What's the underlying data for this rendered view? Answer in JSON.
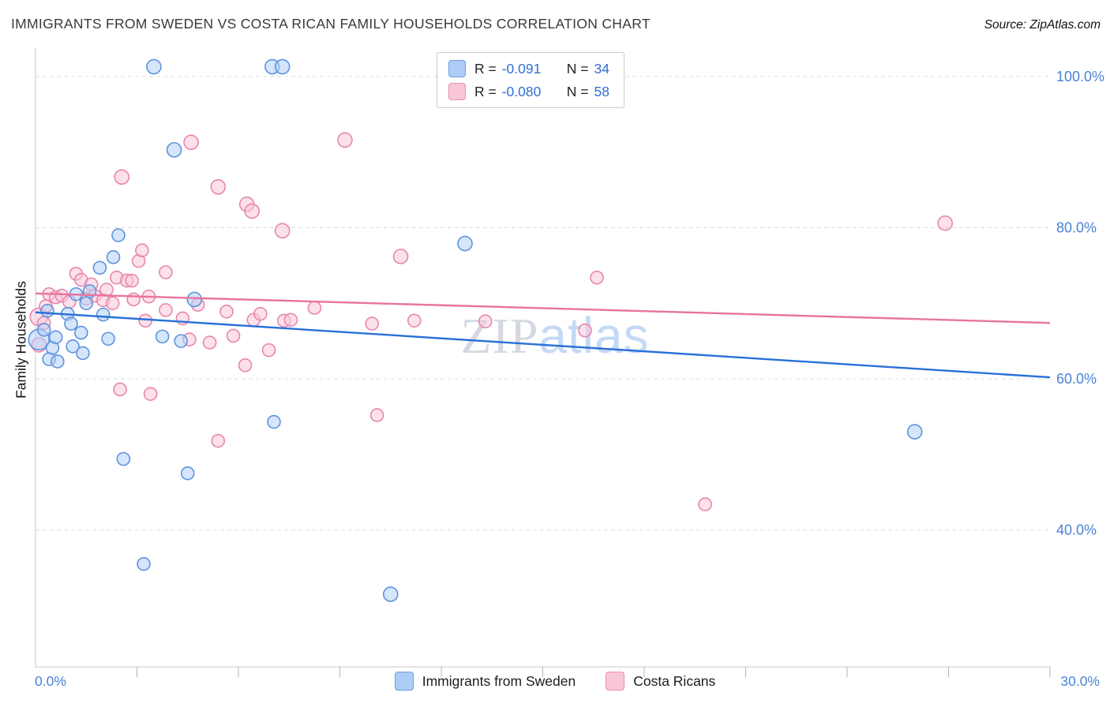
{
  "header": {
    "title": "IMMIGRANTS FROM SWEDEN VS COSTA RICAN FAMILY HOUSEHOLDS CORRELATION CHART",
    "source": "Source: ZipAtlas.com"
  },
  "watermark": {
    "zip": "ZIP",
    "atlas": "atlas"
  },
  "axes": {
    "y_title": "Family Households",
    "x_min_label": "0.0%",
    "x_max_label": "30.0%"
  },
  "legend_box": {
    "rows": [
      {
        "series": "sweden",
        "r_label": "R =",
        "r_value": "-0.091",
        "n_label": "N =",
        "n_value": "34"
      },
      {
        "series": "costa_ricans",
        "r_label": "R =",
        "r_value": "-0.080",
        "n_label": "N =",
        "n_value": "58"
      }
    ]
  },
  "bottom_legend": [
    {
      "label": "Immigrants from Sweden",
      "color": "#aecdf6"
    },
    {
      "label": "Costa Ricans",
      "color": "#f9c6d9"
    }
  ],
  "theme": {
    "axis_label_color": "#4a82d9",
    "grid_color": "#dcdcdc",
    "axis_color": "#c9c9c9",
    "tick_color": "#b5b5b5",
    "title_color": "#3a3a3a"
  },
  "chart_data": {
    "type": "scatter",
    "title": "IMMIGRANTS FROM SWEDEN VS COSTA RICAN FAMILY HOUSEHOLDS CORRELATION CHART",
    "xlabel": "Immigrants from Sweden (%)",
    "ylabel": "Family Households (%)",
    "xlim": [
      0,
      30
    ],
    "ylim": [
      22,
      104
    ],
    "x_tick_step": 3,
    "y_ticks": [
      {
        "value": 100,
        "label": "100.0%"
      },
      {
        "value": 80,
        "label": "80.0%"
      },
      {
        "value": 60,
        "label": "60.0%"
      },
      {
        "value": 40,
        "label": "40.0%"
      }
    ],
    "grid": true,
    "legend_position": "bottom",
    "series": [
      {
        "id": "sweden",
        "name": "Immigrants from Sweden",
        "r": -0.091,
        "n": 34,
        "fill": "#b3d0f7",
        "stroke": "#5f93dd",
        "line_color": "#2970d8",
        "trend": [
          [
            0,
            68.8
          ],
          [
            30,
            60.2
          ]
        ],
        "points": [
          [
            0.1,
            65.2,
            13
          ],
          [
            0.25,
            66.5
          ],
          [
            0.35,
            69.0
          ],
          [
            0.4,
            62.6
          ],
          [
            0.5,
            64.1
          ],
          [
            0.6,
            65.5
          ],
          [
            0.65,
            62.3
          ],
          [
            0.95,
            68.6
          ],
          [
            1.05,
            67.3
          ],
          [
            1.1,
            64.3
          ],
          [
            1.2,
            71.2
          ],
          [
            1.35,
            66.1
          ],
          [
            1.4,
            63.4
          ],
          [
            1.5,
            70.0
          ],
          [
            1.6,
            71.6
          ],
          [
            1.9,
            74.7
          ],
          [
            2.0,
            68.5
          ],
          [
            2.15,
            65.3
          ],
          [
            2.3,
            76.1
          ],
          [
            2.45,
            79.0
          ],
          [
            2.6,
            49.4
          ],
          [
            3.2,
            35.5
          ],
          [
            3.5,
            101.3,
            9
          ],
          [
            3.75,
            65.6
          ],
          [
            4.1,
            90.3,
            9
          ],
          [
            4.3,
            65.0
          ],
          [
            4.5,
            47.5
          ],
          [
            4.7,
            70.5,
            9
          ],
          [
            7.0,
            101.3,
            9
          ],
          [
            7.05,
            54.3
          ],
          [
            7.3,
            101.3,
            9
          ],
          [
            10.5,
            31.5,
            9
          ],
          [
            12.7,
            77.9,
            9
          ],
          [
            26.0,
            53.0,
            9
          ]
        ]
      },
      {
        "id": "costa_ricans",
        "name": "Costa Ricans",
        "r": -0.08,
        "n": 58,
        "fill": "#f9c8da",
        "stroke": "#e886ab",
        "line_color": "#e8739e",
        "trend": [
          [
            0,
            71.3
          ],
          [
            30,
            67.4
          ]
        ],
        "points": [
          [
            0.1,
            68.2,
            11
          ],
          [
            0.1,
            64.5,
            9
          ],
          [
            0.25,
            67.4
          ],
          [
            0.3,
            69.6
          ],
          [
            0.4,
            71.2
          ],
          [
            0.6,
            70.8
          ],
          [
            0.78,
            71.0
          ],
          [
            1.0,
            70.2
          ],
          [
            1.2,
            73.9
          ],
          [
            1.35,
            73.1
          ],
          [
            1.5,
            70.6
          ],
          [
            1.65,
            72.5
          ],
          [
            1.75,
            71.0
          ],
          [
            2.0,
            70.4
          ],
          [
            2.1,
            71.8
          ],
          [
            2.28,
            70.0
          ],
          [
            2.4,
            73.4
          ],
          [
            2.5,
            58.6
          ],
          [
            2.55,
            86.7,
            9
          ],
          [
            2.7,
            73.0
          ],
          [
            2.85,
            73.0
          ],
          [
            2.9,
            70.5
          ],
          [
            3.05,
            75.6
          ],
          [
            3.15,
            77.0
          ],
          [
            3.25,
            67.7
          ],
          [
            3.35,
            70.9
          ],
          [
            3.4,
            58.0
          ],
          [
            3.85,
            74.1
          ],
          [
            3.85,
            69.1
          ],
          [
            4.35,
            68.0
          ],
          [
            4.55,
            65.2
          ],
          [
            4.6,
            91.3,
            9
          ],
          [
            4.8,
            69.8
          ],
          [
            5.15,
            64.8
          ],
          [
            5.4,
            85.4,
            9
          ],
          [
            5.4,
            51.8
          ],
          [
            5.65,
            68.9
          ],
          [
            5.85,
            65.7
          ],
          [
            6.2,
            61.8
          ],
          [
            6.25,
            83.1,
            9
          ],
          [
            6.4,
            82.2,
            9
          ],
          [
            6.45,
            67.8
          ],
          [
            6.65,
            68.6
          ],
          [
            6.9,
            63.8
          ],
          [
            7.3,
            79.6,
            9
          ],
          [
            7.35,
            67.7
          ],
          [
            7.55,
            67.8
          ],
          [
            8.25,
            69.4
          ],
          [
            9.15,
            91.6,
            9
          ],
          [
            9.95,
            67.3
          ],
          [
            10.1,
            55.2
          ],
          [
            10.8,
            76.2,
            9
          ],
          [
            11.2,
            67.7
          ],
          [
            13.3,
            67.6
          ],
          [
            16.25,
            66.4
          ],
          [
            16.6,
            73.4
          ],
          [
            19.8,
            43.4
          ],
          [
            26.9,
            80.6,
            9
          ]
        ]
      }
    ]
  }
}
